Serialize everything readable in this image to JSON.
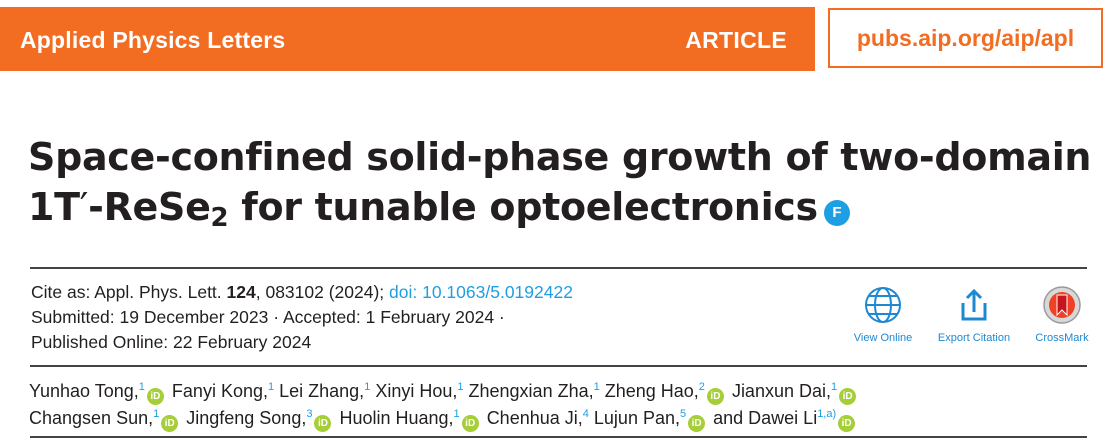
{
  "header": {
    "journal": "Applied Physics Letters",
    "article_type": "ARTICLE",
    "url": "pubs.aip.org/aip/apl"
  },
  "title": {
    "line1": "Space-confined solid-phase growth of two-domain",
    "line2_a": "1T",
    "line2_prime": "′",
    "line2_b": "-ReSe",
    "line2_sub": "2",
    "line2_c": " for tunable optoelectronics",
    "badge": "F"
  },
  "citation": {
    "prefix": "Cite as: Appl. Phys. Lett. ",
    "volume": "124",
    "rest": ", 083102 (2024); ",
    "doi": "doi: 10.1063/5.0192422",
    "submitted": "Submitted: 19 December 2023 · Accepted: 1 February 2024 ·",
    "published": "Published Online: 22 February 2024"
  },
  "tools": [
    {
      "label": "View Online",
      "icon": "globe-icon"
    },
    {
      "label": "Export Citation",
      "icon": "export-icon"
    },
    {
      "label": "CrossMark",
      "icon": "crossmark-icon"
    }
  ],
  "orcid_label": "iD",
  "authors": [
    {
      "name": "Yunhao Tong,",
      "aff": "1",
      "orcid": true
    },
    {
      "name": "Fanyi Kong,",
      "aff": "1",
      "orcid": false
    },
    {
      "name": "Lei Zhang,",
      "aff": "1",
      "orcid": false
    },
    {
      "name": "Xinyi Hou,",
      "aff": "1",
      "orcid": false
    },
    {
      "name": "Zhengxian Zha,",
      "aff": "1",
      "orcid": false
    },
    {
      "name": "Zheng Hao,",
      "aff": "2",
      "orcid": true
    },
    {
      "name": "Jianxun Dai,",
      "aff": "1",
      "orcid": true
    },
    {
      "name": "Changsen Sun,",
      "aff": "1",
      "orcid": true
    },
    {
      "name": "Jingfeng Song,",
      "aff": "3",
      "orcid": true
    },
    {
      "name": "Huolin Huang,",
      "aff": "1",
      "orcid": true
    },
    {
      "name": "Chenhua Ji,",
      "aff": "4",
      "orcid": false
    },
    {
      "name": "Lujun Pan,",
      "aff": "5",
      "orcid": true
    },
    {
      "name": "and Dawei Li",
      "aff": "1,a)",
      "orcid": true
    }
  ]
}
